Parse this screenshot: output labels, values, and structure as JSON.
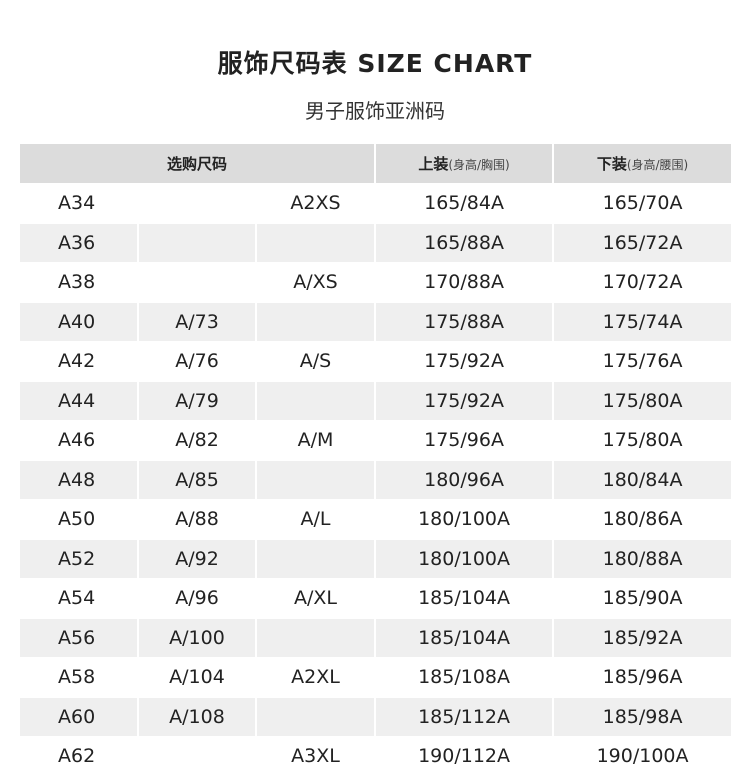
{
  "title": "服饰尺码表 SIZE CHART",
  "subtitle": "男子服饰亚洲码",
  "headers": {
    "size": "选购尺码",
    "top": "上装",
    "top_sub": "(身高/胸围)",
    "bottom": "下装",
    "bottom_sub": "(身高/腰围)"
  },
  "rows": [
    [
      "A34",
      "",
      "A2XS",
      "165/84A",
      "165/70A"
    ],
    [
      "A36",
      "",
      "",
      "165/88A",
      "165/72A"
    ],
    [
      "A38",
      "",
      "A/XS",
      "170/88A",
      "170/72A"
    ],
    [
      "A40",
      "A/73",
      "",
      "175/88A",
      "175/74A"
    ],
    [
      "A42",
      "A/76",
      "A/S",
      "175/92A",
      "175/76A"
    ],
    [
      "A44",
      "A/79",
      "",
      "175/92A",
      "175/80A"
    ],
    [
      "A46",
      "A/82",
      "A/M",
      "175/96A",
      "175/80A"
    ],
    [
      "A48",
      "A/85",
      "",
      "180/96A",
      "180/84A"
    ],
    [
      "A50",
      "A/88",
      "A/L",
      "180/100A",
      "180/86A"
    ],
    [
      "A52",
      "A/92",
      "",
      "180/100A",
      "180/88A"
    ],
    [
      "A54",
      "A/96",
      "A/XL",
      "185/104A",
      "185/90A"
    ],
    [
      "A56",
      "A/100",
      "",
      "185/104A",
      "185/92A"
    ],
    [
      "A58",
      "A/104",
      "A2XL",
      "185/108A",
      "185/96A"
    ],
    [
      "A60",
      "A/108",
      "",
      "185/112A",
      "185/98A"
    ],
    [
      "A62",
      "",
      "A3XL",
      "190/112A",
      "190/100A"
    ]
  ]
}
